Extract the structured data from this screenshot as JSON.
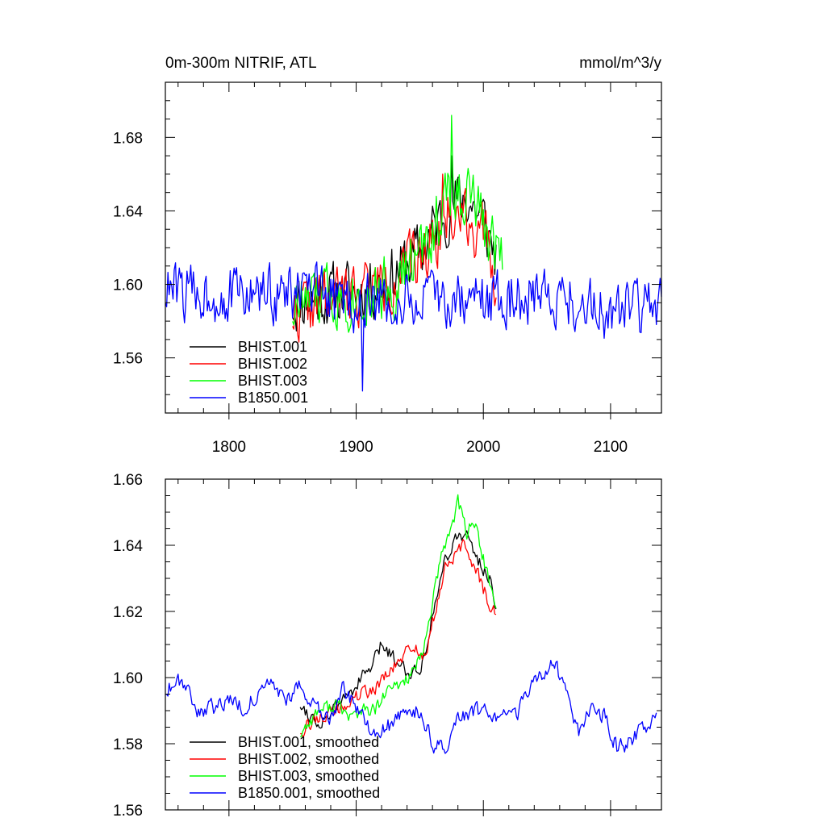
{
  "chart_data": [
    {
      "type": "line",
      "title_left": "0m-300m NITRIF, ATL",
      "title_right": "mmol/m^3/y",
      "xlim": [
        1750,
        2140
      ],
      "ylim": [
        1.53,
        1.71
      ],
      "x_ticks": [
        1800,
        1900,
        2000,
        2100
      ],
      "x_tick_labels": [
        "1800",
        "1900",
        "2000",
        "2100"
      ],
      "y_ticks": [
        1.56,
        1.6,
        1.64,
        1.68
      ],
      "y_tick_labels": [
        "1.56",
        "1.60",
        "1.64",
        "1.68"
      ],
      "legend_position": "bottom-left",
      "series": [
        {
          "name": "BHIST.001",
          "color": "#000000",
          "x_start": 1850,
          "x_end": 2010,
          "anchors": [
            [
              1850,
              1.59
            ],
            [
              1870,
              1.593
            ],
            [
              1890,
              1.595
            ],
            [
              1910,
              1.598
            ],
            [
              1930,
              1.605
            ],
            [
              1950,
              1.618
            ],
            [
              1970,
              1.64
            ],
            [
              1985,
              1.648
            ],
            [
              2000,
              1.635
            ],
            [
              2010,
              1.615
            ]
          ],
          "noise": 0.017,
          "spike": {
            "x": 1975,
            "value": 1.67
          },
          "seed": 11
        },
        {
          "name": "BHIST.002",
          "color": "#ff0000",
          "x_start": 1850,
          "x_end": 2010,
          "anchors": [
            [
              1850,
              1.585
            ],
            [
              1870,
              1.59
            ],
            [
              1890,
              1.594
            ],
            [
              1910,
              1.598
            ],
            [
              1930,
              1.603
            ],
            [
              1950,
              1.615
            ],
            [
              1970,
              1.635
            ],
            [
              1985,
              1.64
            ],
            [
              2000,
              1.625
            ],
            [
              2010,
              1.605
            ]
          ],
          "noise": 0.017,
          "spike": {
            "x": 1968,
            "value": 1.66
          },
          "seed": 22
        },
        {
          "name": "BHIST.003",
          "color": "#00ff00",
          "x_start": 1850,
          "x_end": 2015,
          "anchors": [
            [
              1850,
              1.588
            ],
            [
              1870,
              1.592
            ],
            [
              1890,
              1.595
            ],
            [
              1910,
              1.596
            ],
            [
              1930,
              1.6
            ],
            [
              1950,
              1.615
            ],
            [
              1965,
              1.638
            ],
            [
              1975,
              1.65
            ],
            [
              1990,
              1.648
            ],
            [
              2005,
              1.625
            ],
            [
              2015,
              1.62
            ]
          ],
          "noise": 0.018,
          "spike": {
            "x": 1975,
            "value": 1.692
          },
          "seed": 33
        },
        {
          "name": "B1850.001",
          "color": "#0000ff",
          "x_start": 1750,
          "x_end": 2140,
          "anchors": [
            [
              1750,
              1.597
            ],
            [
              1800,
              1.594
            ],
            [
              1850,
              1.595
            ],
            [
              1900,
              1.59
            ],
            [
              1950,
              1.59
            ],
            [
              2000,
              1.592
            ],
            [
              2050,
              1.595
            ],
            [
              2100,
              1.585
            ],
            [
              2140,
              1.588
            ]
          ],
          "noise": 0.016,
          "spike": {
            "x": 1905,
            "value": 1.542
          },
          "seed": 44
        }
      ]
    },
    {
      "type": "line",
      "xlim": [
        1750,
        2140
      ],
      "ylim": [
        1.56,
        1.66
      ],
      "x_ticks": [
        1800,
        1900,
        2000,
        2100
      ],
      "x_tick_labels": [],
      "y_ticks": [
        1.56,
        1.58,
        1.6,
        1.62,
        1.64,
        1.66
      ],
      "y_tick_labels": [
        "1.56",
        "1.58",
        "1.60",
        "1.62",
        "1.64",
        "1.66"
      ],
      "legend_position": "bottom-left",
      "series": [
        {
          "name": "BHIST.001, smoothed",
          "color": "#000000",
          "x_start": 1856,
          "x_end": 2010,
          "anchors": [
            [
              1856,
              1.592
            ],
            [
              1870,
              1.586
            ],
            [
              1885,
              1.591
            ],
            [
              1900,
              1.598
            ],
            [
              1912,
              1.603
            ],
            [
              1920,
              1.61
            ],
            [
              1930,
              1.606
            ],
            [
              1940,
              1.602
            ],
            [
              1950,
              1.602
            ],
            [
              1955,
              1.61
            ],
            [
              1962,
              1.622
            ],
            [
              1970,
              1.636
            ],
            [
              1978,
              1.642
            ],
            [
              1985,
              1.644
            ],
            [
              1995,
              1.636
            ],
            [
              2005,
              1.63
            ],
            [
              2010,
              1.622
            ]
          ],
          "noise": 0.0022,
          "seed": 55
        },
        {
          "name": "BHIST.002, smoothed",
          "color": "#ff0000",
          "x_start": 1856,
          "x_end": 2010,
          "anchors": [
            [
              1856,
              1.584
            ],
            [
              1870,
              1.588
            ],
            [
              1885,
              1.59
            ],
            [
              1900,
              1.594
            ],
            [
              1915,
              1.597
            ],
            [
              1930,
              1.603
            ],
            [
              1945,
              1.61
            ],
            [
              1955,
              1.606
            ],
            [
              1962,
              1.62
            ],
            [
              1970,
              1.633
            ],
            [
              1978,
              1.637
            ],
            [
              1985,
              1.64
            ],
            [
              1995,
              1.632
            ],
            [
              2005,
              1.622
            ],
            [
              2010,
              1.619
            ]
          ],
          "noise": 0.0022,
          "seed": 66
        },
        {
          "name": "BHIST.003, smoothed",
          "color": "#00ff00",
          "x_start": 1856,
          "x_end": 2010,
          "anchors": [
            [
              1856,
              1.583
            ],
            [
              1870,
              1.59
            ],
            [
              1885,
              1.592
            ],
            [
              1895,
              1.588
            ],
            [
              1905,
              1.59
            ],
            [
              1915,
              1.59
            ],
            [
              1925,
              1.596
            ],
            [
              1935,
              1.598
            ],
            [
              1945,
              1.602
            ],
            [
              1952,
              1.606
            ],
            [
              1960,
              1.623
            ],
            [
              1968,
              1.638
            ],
            [
              1975,
              1.646
            ],
            [
              1980,
              1.653
            ],
            [
              1987,
              1.644
            ],
            [
              1992,
              1.648
            ],
            [
              2000,
              1.636
            ],
            [
              2010,
              1.62
            ]
          ],
          "noise": 0.0022,
          "seed": 77
        },
        {
          "name": "B1850.001, smoothed",
          "color": "#0000ff",
          "x_start": 1750,
          "x_end": 2136,
          "anchors": [
            [
              1750,
              1.596
            ],
            [
              1760,
              1.6
            ],
            [
              1768,
              1.597
            ],
            [
              1775,
              1.59
            ],
            [
              1790,
              1.591
            ],
            [
              1800,
              1.594
            ],
            [
              1810,
              1.591
            ],
            [
              1825,
              1.595
            ],
            [
              1835,
              1.599
            ],
            [
              1845,
              1.592
            ],
            [
              1855,
              1.599
            ],
            [
              1860,
              1.593
            ],
            [
              1870,
              1.59
            ],
            [
              1880,
              1.588
            ],
            [
              1890,
              1.597
            ],
            [
              1900,
              1.59
            ],
            [
              1910,
              1.585
            ],
            [
              1920,
              1.584
            ],
            [
              1935,
              1.588
            ],
            [
              1950,
              1.59
            ],
            [
              1960,
              1.58
            ],
            [
              1972,
              1.577
            ],
            [
              1980,
              1.587
            ],
            [
              1995,
              1.59
            ],
            [
              2010,
              1.589
            ],
            [
              2025,
              1.588
            ],
            [
              2035,
              1.595
            ],
            [
              2045,
              1.6
            ],
            [
              2055,
              1.604
            ],
            [
              2065,
              1.598
            ],
            [
              2075,
              1.583
            ],
            [
              2085,
              1.592
            ],
            [
              2095,
              1.588
            ],
            [
              2105,
              1.579
            ],
            [
              2115,
              1.58
            ],
            [
              2125,
              1.585
            ],
            [
              2136,
              1.587
            ]
          ],
          "noise": 0.0025,
          "seed": 88
        }
      ]
    }
  ]
}
